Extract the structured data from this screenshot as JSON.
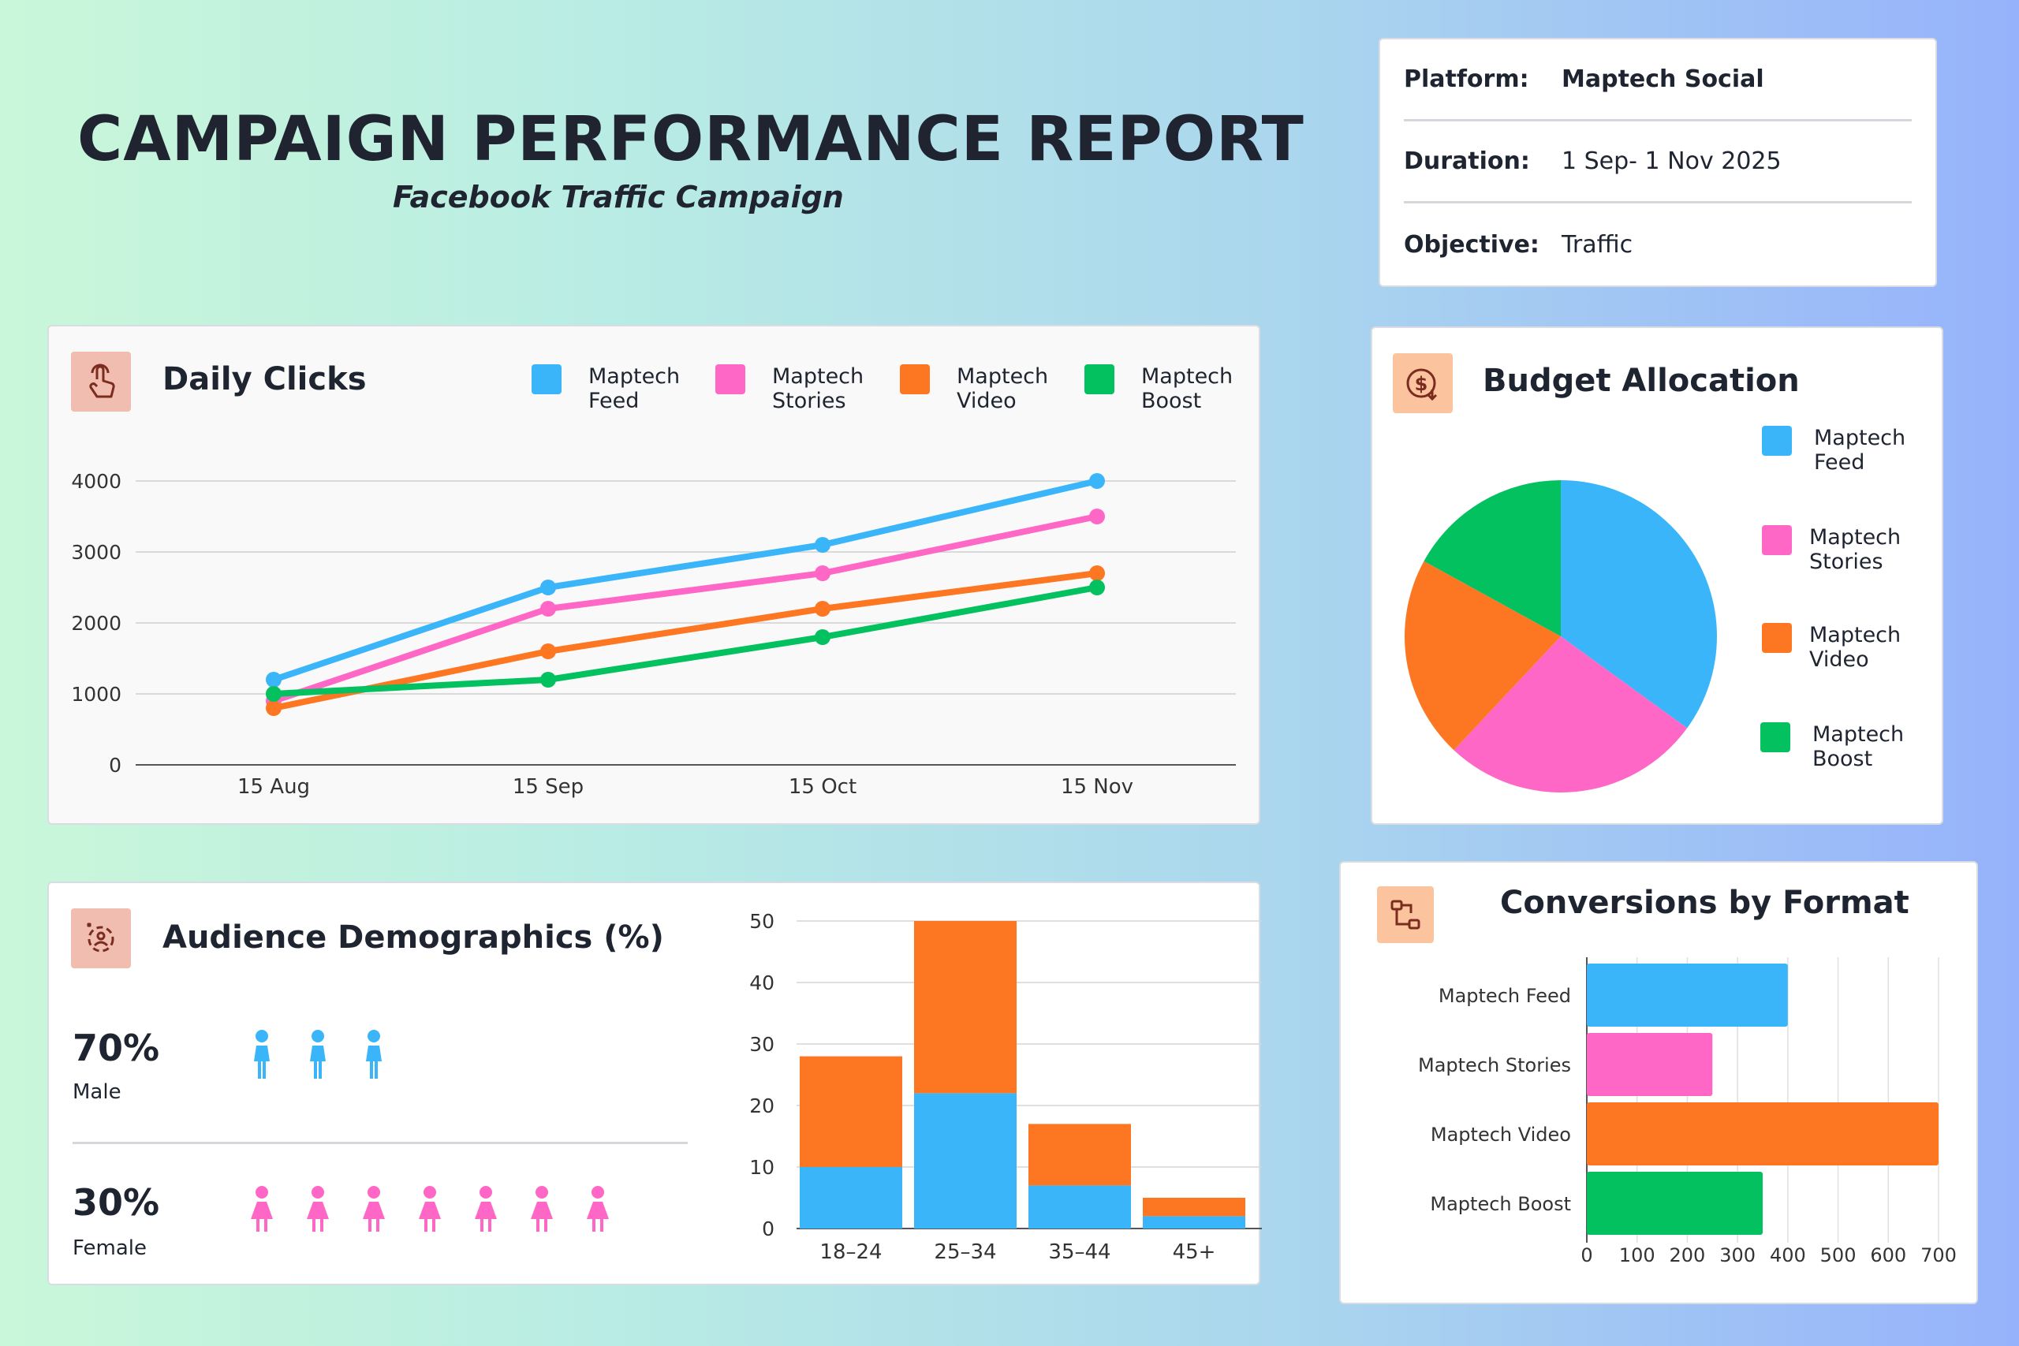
{
  "header": {
    "title": "CAMPAIGN PERFORMANCE REPORT",
    "subtitle": "Facebook Traffic Campaign"
  },
  "info": {
    "rows": [
      {
        "key": "Platform:",
        "value": "Maptech Social"
      },
      {
        "key": "Duration:",
        "value": "1 Sep- 1 Nov 2025"
      },
      {
        "key": "Objective:",
        "value": "Traffic"
      }
    ]
  },
  "colors": {
    "feed": "#3bb5fa",
    "stories": "#fe67c5",
    "video": "#fd7621",
    "boost": "#04c160"
  },
  "legend": {
    "feed": [
      "Maptech",
      "Feed"
    ],
    "stories": [
      "Maptech",
      "Stories"
    ],
    "video": [
      "Maptech",
      "Video"
    ],
    "boost": [
      "Maptech",
      "Boost"
    ]
  },
  "daily_clicks": {
    "title": "Daily Clicks"
  },
  "budget": {
    "title": "Budget Allocation"
  },
  "demographics": {
    "title": "Audience Demographics (%)",
    "male": {
      "pct": "70%",
      "label": "Male",
      "icons": 3
    },
    "female": {
      "pct": "30%",
      "label": "Female",
      "icons": 7
    }
  },
  "conversions": {
    "title": "Conversions by Format"
  },
  "chart_data": [
    {
      "id": "daily-clicks",
      "type": "line",
      "title": "Daily Clicks",
      "categories": [
        "15 Aug",
        "15 Sep",
        "15 Oct",
        "15 Nov"
      ],
      "yticks": [
        0,
        1000,
        2000,
        3000,
        4000
      ],
      "ylim": [
        0,
        4000
      ],
      "series": [
        {
          "name": "Maptech Feed",
          "key": "feed",
          "values": [
            1200,
            2500,
            3100,
            4000
          ]
        },
        {
          "name": "Maptech Stories",
          "key": "stories",
          "values": [
            900,
            2200,
            2700,
            3500
          ]
        },
        {
          "name": "Maptech Video",
          "key": "video",
          "values": [
            800,
            1600,
            2200,
            2700
          ]
        },
        {
          "name": "Maptech Boost",
          "key": "boost",
          "values": [
            1000,
            1200,
            1800,
            2500
          ]
        }
      ],
      "legend_position": "top-right"
    },
    {
      "id": "budget-allocation",
      "type": "pie",
      "title": "Budget Allocation",
      "slices": [
        {
          "name": "Maptech Feed",
          "key": "feed",
          "value": 35
        },
        {
          "name": "Maptech Stories",
          "key": "stories",
          "value": 27
        },
        {
          "name": "Maptech Video",
          "key": "video",
          "value": 21
        },
        {
          "name": "Maptech Boost",
          "key": "boost",
          "value": 17
        }
      ],
      "legend_position": "right"
    },
    {
      "id": "age-distribution",
      "type": "bar",
      "stacked": true,
      "categories": [
        "18–24",
        "25–34",
        "35–44",
        "45+"
      ],
      "yticks": [
        0,
        10,
        20,
        30,
        40,
        50
      ],
      "ylim": [
        0,
        50
      ],
      "series": [
        {
          "name": "Maptech Feed",
          "key": "feed",
          "values": [
            10,
            22,
            7,
            2
          ]
        },
        {
          "name": "Maptech Video",
          "key": "video",
          "values": [
            18,
            28,
            10,
            3
          ]
        }
      ]
    },
    {
      "id": "conversions-by-format",
      "type": "bar",
      "orientation": "horizontal",
      "title": "Conversions by Format",
      "categories": [
        "Maptech Feed",
        "Maptech Stories",
        "Maptech Video",
        "Maptech Boost"
      ],
      "keys": [
        "feed",
        "stories",
        "video",
        "boost"
      ],
      "values": [
        400,
        250,
        700,
        350
      ],
      "xticks": [
        0,
        100,
        200,
        300,
        400,
        500,
        600,
        700
      ],
      "xlim": [
        0,
        700
      ]
    }
  ]
}
